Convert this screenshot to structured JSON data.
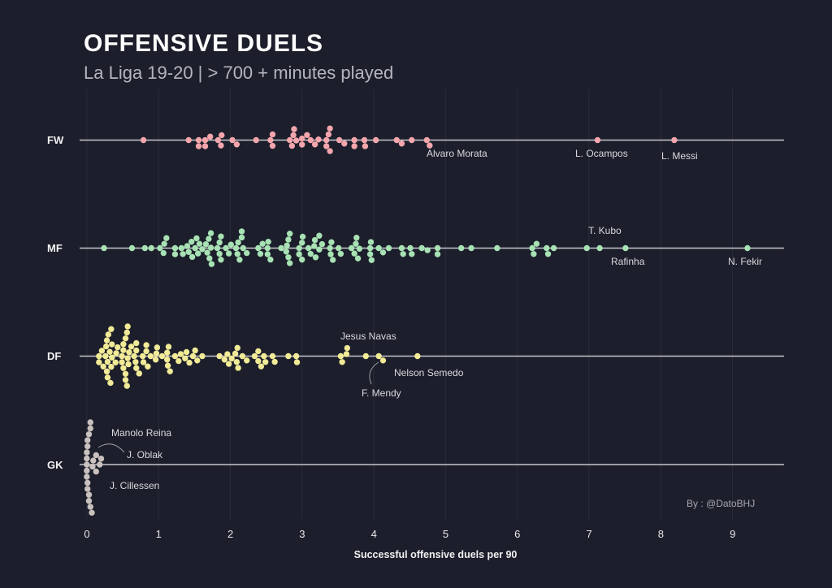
{
  "chart_data": {
    "type": "scatter",
    "style": "beeswarm",
    "title": "OFFENSIVE DUELS",
    "subtitle": "La Liga 19-20 | > 700 + minutes played",
    "xlabel": "Successful offensive duels per 90",
    "ylabel": "",
    "xlim": [
      -0.1,
      9.72
    ],
    "x_ticks": [
      "0",
      "1",
      "2",
      "3",
      "4",
      "5",
      "6",
      "7",
      "8",
      "9"
    ],
    "grid": "vertical",
    "legend": "none",
    "categories": [
      "FW",
      "MF",
      "DF",
      "GK"
    ],
    "series": [
      {
        "name": "FW",
        "color": "#f4a6ad",
        "values": [
          0.79,
          1.42,
          1.56,
          1.56,
          1.65,
          1.65,
          1.72,
          1.83,
          1.87,
          1.88,
          2.03,
          2.09,
          2.36,
          2.56,
          2.59,
          2.59,
          2.83,
          2.86,
          2.88,
          2.89,
          2.92,
          3.0,
          3.0,
          3.07,
          3.12,
          3.18,
          3.23,
          3.34,
          3.34,
          3.37,
          3.39,
          3.39,
          3.52,
          3.59,
          3.73,
          3.73,
          3.87,
          3.88,
          4.03,
          4.32,
          4.39,
          4.53,
          4.74,
          4.78,
          7.12,
          8.19
        ]
      },
      {
        "name": "MF",
        "color": "#a8e2b4",
        "values": [
          0.24,
          0.63,
          0.81,
          0.9,
          1.02,
          1.07,
          1.08,
          1.11,
          1.23,
          1.23,
          1.32,
          1.34,
          1.4,
          1.42,
          1.46,
          1.47,
          1.51,
          1.53,
          1.55,
          1.57,
          1.61,
          1.66,
          1.68,
          1.7,
          1.71,
          1.73,
          1.73,
          1.74,
          1.82,
          1.85,
          1.85,
          1.87,
          1.87,
          1.94,
          1.98,
          2.01,
          2.08,
          2.1,
          2.11,
          2.13,
          2.16,
          2.16,
          2.18,
          2.23,
          2.39,
          2.42,
          2.45,
          2.52,
          2.52,
          2.53,
          2.56,
          2.71,
          2.78,
          2.79,
          2.81,
          2.81,
          2.83,
          2.83,
          2.96,
          2.96,
          3.0,
          3.0,
          3.01,
          3.09,
          3.12,
          3.17,
          3.18,
          3.19,
          3.24,
          3.24,
          3.28,
          3.39,
          3.4,
          3.41,
          3.43,
          3.51,
          3.54,
          3.69,
          3.73,
          3.75,
          3.76,
          3.78,
          3.8,
          3.95,
          3.95,
          3.96,
          3.97,
          4.07,
          4.13,
          4.21,
          4.39,
          4.41,
          4.51,
          4.53,
          4.67,
          4.75,
          4.89,
          4.89,
          5.22,
          5.36,
          5.72,
          6.21,
          6.23,
          6.27,
          6.41,
          6.43,
          6.51,
          6.97,
          7.15,
          7.51,
          9.21
        ]
      },
      {
        "name": "DF",
        "color": "#f1ea97",
        "values": [
          0.17,
          0.17,
          0.21,
          0.23,
          0.26,
          0.27,
          0.28,
          0.28,
          0.29,
          0.29,
          0.3,
          0.32,
          0.33,
          0.34,
          0.34,
          0.35,
          0.35,
          0.4,
          0.41,
          0.43,
          0.49,
          0.49,
          0.51,
          0.51,
          0.51,
          0.54,
          0.54,
          0.54,
          0.56,
          0.56,
          0.57,
          0.57,
          0.58,
          0.59,
          0.62,
          0.66,
          0.68,
          0.69,
          0.69,
          0.69,
          0.73,
          0.78,
          0.79,
          0.83,
          0.83,
          0.85,
          0.89,
          0.96,
          0.97,
          0.98,
          1.05,
          1.12,
          1.12,
          1.13,
          1.14,
          1.16,
          1.23,
          1.28,
          1.31,
          1.37,
          1.39,
          1.43,
          1.48,
          1.51,
          1.54,
          1.61,
          1.85,
          1.92,
          1.96,
          1.98,
          2.02,
          2.07,
          2.09,
          2.1,
          2.11,
          2.17,
          2.23,
          2.34,
          2.39,
          2.39,
          2.43,
          2.47,
          2.49,
          2.59,
          2.62,
          2.81,
          2.92,
          2.93,
          3.54,
          3.56,
          3.62,
          3.63,
          3.89,
          4.07,
          4.13,
          4.61
        ]
      },
      {
        "name": "GK",
        "color": "#c9c1bd",
        "values": [
          0.0,
          0.0,
          0.0,
          0.0,
          0.0,
          0.01,
          0.01,
          0.01,
          0.01,
          0.03,
          0.03,
          0.03,
          0.05,
          0.05,
          0.05,
          0.07,
          0.08,
          0.09,
          0.13,
          0.13,
          0.18,
          0.2
        ]
      }
    ],
    "annotations": [
      {
        "label": "Alvaro Morata",
        "position": "FW",
        "x": 4.78
      },
      {
        "label": "L. Ocampos",
        "position": "FW",
        "x": 7.12
      },
      {
        "label": "L. Messi",
        "position": "FW",
        "x": 8.19
      },
      {
        "label": "T. Kubo",
        "position": "MF",
        "x": 7.15
      },
      {
        "label": "Rafinha",
        "position": "MF",
        "x": 7.51
      },
      {
        "label": "N. Fekir",
        "position": "MF",
        "x": 9.21
      },
      {
        "label": "Jesus Navas",
        "position": "DF",
        "x": 3.62
      },
      {
        "label": "Nelson Semedo",
        "position": "DF",
        "x": 4.61
      },
      {
        "label": "F. Mendy",
        "position": "DF",
        "x": 4.07
      },
      {
        "label": "Manolo Reina",
        "position": "GK",
        "x": 0.18
      },
      {
        "label": "J. Oblak",
        "position": "GK",
        "x": 0.13
      },
      {
        "label": "J. Cillessen",
        "position": "GK",
        "x": 0.2
      }
    ],
    "caption": "By : @DatoBHJ"
  },
  "colors": {
    "background": "#1c1e2b",
    "baseline": "#c6c6cb",
    "grid": "#2a2c3b"
  }
}
